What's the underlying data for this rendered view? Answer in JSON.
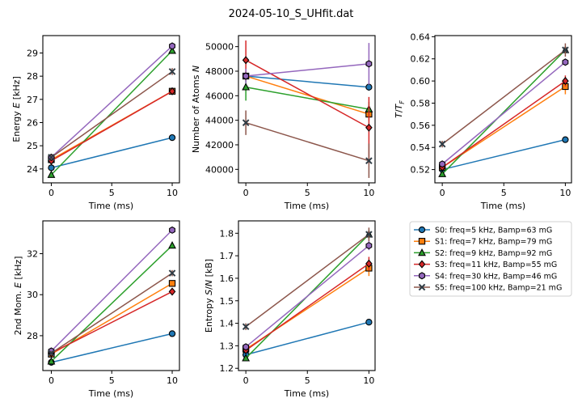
{
  "title": "2024-05-10_S_UHfit.dat",
  "series": [
    {
      "name": "S0: freq=5 kHz, Bamp=63 mG",
      "color": "#1f77b4",
      "marker": "circle"
    },
    {
      "name": "S1: freq=7 kHz, Bamp=79 mG",
      "color": "#ff7f0e",
      "marker": "square"
    },
    {
      "name": "S2: freq=9 kHz, Bamp=92 mG",
      "color": "#2ca02c",
      "marker": "triangle"
    },
    {
      "name": "S3: freq=11 kHz, Bamp=55 mG",
      "color": "#d62728",
      "marker": "diamond"
    },
    {
      "name": "S4: freq=30 kHz, Bamp=46 mG",
      "color": "#9467bd",
      "marker": "hexagon"
    },
    {
      "name": "S5: freq=100 kHz, Bamp=21 mG",
      "color": "#8c564b",
      "marker": "x"
    }
  ],
  "chart_data": [
    {
      "type": "line",
      "xlabel": "Time (ms)",
      "ylabel": "Energy E [kHz]",
      "x": [
        0,
        10
      ],
      "xlim": [
        -0.7,
        10.6
      ],
      "ylim": [
        23.4,
        29.75
      ],
      "xticks": [
        "0",
        "5",
        "10"
      ],
      "yticks": [
        "24",
        "25",
        "26",
        "27",
        "28",
        "29"
      ],
      "values": [
        [
          24.05,
          25.35
        ],
        [
          24.4,
          27.35
        ],
        [
          23.75,
          29.1
        ],
        [
          24.35,
          27.35
        ],
        [
          24.5,
          29.3
        ],
        [
          24.5,
          28.2
        ]
      ],
      "errors": [
        [
          0.05,
          0.05
        ],
        [
          0.08,
          0.1
        ],
        [
          0.08,
          0.1
        ],
        [
          0.08,
          0.1
        ],
        [
          0.08,
          0.1
        ],
        [
          0.1,
          0.15
        ]
      ]
    },
    {
      "type": "line",
      "xlabel": "Time (ms)",
      "ylabel": "Number of Atoms N",
      "x": [
        0,
        10
      ],
      "xlim": [
        -0.6,
        10.5
      ],
      "ylim": [
        38900,
        50900
      ],
      "xticks": [
        "0",
        "5",
        "10"
      ],
      "yticks": [
        "40000",
        "42000",
        "44000",
        "46000",
        "48000",
        "50000"
      ],
      "values": [
        [
          47600,
          46700
        ],
        [
          47600,
          44500
        ],
        [
          46700,
          44900
        ],
        [
          48900,
          43400
        ],
        [
          47600,
          48600
        ],
        [
          43800,
          40700
        ]
      ],
      "errors": [
        [
          300,
          300
        ],
        [
          400,
          500
        ],
        [
          1100,
          600
        ],
        [
          1600,
          2500
        ],
        [
          600,
          1700
        ],
        [
          1000,
          1400
        ]
      ]
    },
    {
      "type": "line",
      "xlabel": "Time (ms)",
      "ylabel": "T/T_F",
      "x": [
        0,
        10
      ],
      "xlim": [
        -0.6,
        10.5
      ],
      "ylim": [
        0.508,
        0.641
      ],
      "xticks": [
        "0",
        "5",
        "10"
      ],
      "yticks": [
        "0.52",
        "0.54",
        "0.56",
        "0.58",
        "0.60",
        "0.62",
        "0.64"
      ],
      "values": [
        [
          0.52,
          0.547
        ],
        [
          0.522,
          0.595
        ],
        [
          0.516,
          0.628
        ],
        [
          0.522,
          0.6
        ],
        [
          0.525,
          0.617
        ],
        [
          0.543,
          0.628
        ]
      ],
      "errors": [
        [
          0.001,
          0.001
        ],
        [
          0.002,
          0.007
        ],
        [
          0.002,
          0.003
        ],
        [
          0.002,
          0.005
        ],
        [
          0.002,
          0.003
        ],
        [
          0.003,
          0.006
        ]
      ]
    },
    {
      "type": "line",
      "xlabel": "Time (ms)",
      "ylabel": "2nd Mom. E [kHz]",
      "x": [
        0,
        10
      ],
      "xlim": [
        -0.7,
        10.6
      ],
      "ylim": [
        26.3,
        33.6
      ],
      "xticks": [
        "0",
        "5",
        "10"
      ],
      "yticks": [
        "28",
        "30",
        "32"
      ],
      "values": [
        [
          26.7,
          28.1
        ],
        [
          27.1,
          30.55
        ],
        [
          26.75,
          32.4
        ],
        [
          27.15,
          30.15
        ],
        [
          27.25,
          33.15
        ],
        [
          27.15,
          31.05
        ]
      ],
      "errors": [
        [
          0.05,
          0.05
        ],
        [
          0.08,
          0.12
        ],
        [
          0.08,
          0.1
        ],
        [
          0.08,
          0.12
        ],
        [
          0.08,
          0.1
        ],
        [
          0.1,
          0.15
        ]
      ]
    },
    {
      "type": "line",
      "xlabel": "Time (ms)",
      "ylabel": "Entropy S/N [kB]",
      "x": [
        0,
        10
      ],
      "xlim": [
        -0.6,
        10.5
      ],
      "ylim": [
        1.19,
        1.855
      ],
      "xticks": [
        "0",
        "5",
        "10"
      ],
      "yticks": [
        "1.2",
        "1.3",
        "1.4",
        "1.5",
        "1.6",
        "1.7",
        "1.8"
      ],
      "values": [
        [
          1.26,
          1.405
        ],
        [
          1.285,
          1.645
        ],
        [
          1.245,
          1.795
        ],
        [
          1.28,
          1.665
        ],
        [
          1.295,
          1.745
        ],
        [
          1.385,
          1.795
        ]
      ],
      "errors": [
        [
          0.005,
          0.005
        ],
        [
          0.01,
          0.035
        ],
        [
          0.01,
          0.02
        ],
        [
          0.01,
          0.03
        ],
        [
          0.01,
          0.02
        ],
        [
          0.015,
          0.03
        ]
      ]
    }
  ]
}
